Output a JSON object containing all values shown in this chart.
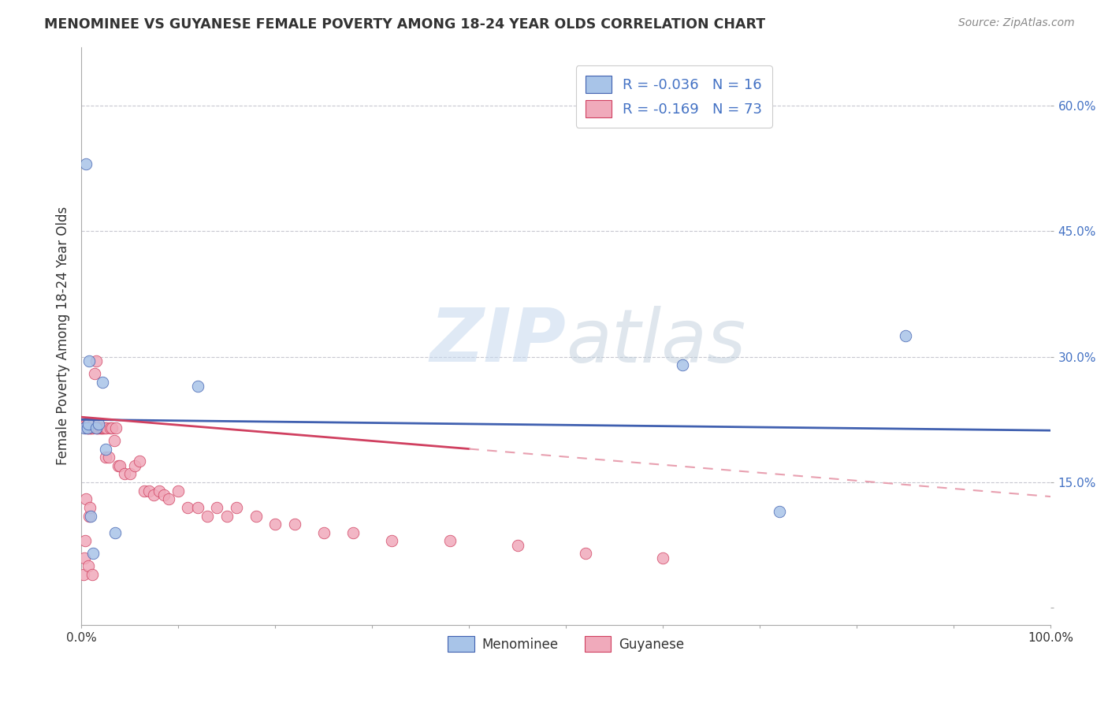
{
  "title": "MENOMINEE VS GUYANESE FEMALE POVERTY AMONG 18-24 YEAR OLDS CORRELATION CHART",
  "source": "Source: ZipAtlas.com",
  "ylabel": "Female Poverty Among 18-24 Year Olds",
  "xlim": [
    0,
    1.0
  ],
  "ylim": [
    -0.02,
    0.67
  ],
  "xticks": [
    0.0,
    0.1,
    0.2,
    0.3,
    0.4,
    0.5,
    0.6,
    0.7,
    0.8,
    0.9,
    1.0
  ],
  "xticklabels": [
    "0.0%",
    "",
    "",
    "",
    "",
    "",
    "",
    "",
    "",
    "",
    "100.0%"
  ],
  "yticks": [
    0.0,
    0.15,
    0.3,
    0.45,
    0.6
  ],
  "yticklabels": [
    "",
    "15.0%",
    "30.0%",
    "45.0%",
    "60.0%"
  ],
  "menominee_color": "#a8c4e8",
  "guyanese_color": "#f0aabb",
  "trend_menominee_color": "#4060b0",
  "trend_guyanese_solid_color": "#d04060",
  "trend_guyanese_dash_color": "#e8a0b0",
  "legend_r_menominee": "R = -0.036",
  "legend_n_menominee": "N = 16",
  "legend_r_guyanese": "R = -0.169",
  "legend_n_guyanese": "N = 73",
  "menominee_x": [
    0.003,
    0.005,
    0.006,
    0.007,
    0.008,
    0.01,
    0.012,
    0.015,
    0.018,
    0.022,
    0.025,
    0.035,
    0.12,
    0.62,
    0.72,
    0.85
  ],
  "menominee_y": [
    0.215,
    0.53,
    0.215,
    0.22,
    0.295,
    0.11,
    0.065,
    0.215,
    0.22,
    0.27,
    0.19,
    0.09,
    0.265,
    0.29,
    0.115,
    0.325
  ],
  "guyanese_x": [
    0.002,
    0.003,
    0.003,
    0.004,
    0.004,
    0.005,
    0.005,
    0.005,
    0.006,
    0.006,
    0.007,
    0.007,
    0.007,
    0.008,
    0.008,
    0.009,
    0.009,
    0.01,
    0.01,
    0.011,
    0.011,
    0.012,
    0.012,
    0.013,
    0.013,
    0.014,
    0.015,
    0.015,
    0.016,
    0.017,
    0.018,
    0.019,
    0.02,
    0.021,
    0.022,
    0.023,
    0.024,
    0.025,
    0.026,
    0.028,
    0.03,
    0.032,
    0.034,
    0.036,
    0.038,
    0.04,
    0.045,
    0.05,
    0.055,
    0.06,
    0.065,
    0.07,
    0.075,
    0.08,
    0.085,
    0.09,
    0.1,
    0.11,
    0.12,
    0.13,
    0.14,
    0.15,
    0.16,
    0.18,
    0.2,
    0.22,
    0.25,
    0.28,
    0.32,
    0.38,
    0.45,
    0.52,
    0.6
  ],
  "guyanese_y": [
    0.04,
    0.22,
    0.06,
    0.22,
    0.08,
    0.22,
    0.215,
    0.13,
    0.215,
    0.22,
    0.215,
    0.215,
    0.05,
    0.11,
    0.22,
    0.215,
    0.12,
    0.215,
    0.215,
    0.215,
    0.04,
    0.215,
    0.22,
    0.22,
    0.22,
    0.28,
    0.215,
    0.295,
    0.215,
    0.215,
    0.215,
    0.215,
    0.215,
    0.215,
    0.215,
    0.215,
    0.215,
    0.18,
    0.215,
    0.18,
    0.215,
    0.215,
    0.2,
    0.215,
    0.17,
    0.17,
    0.16,
    0.16,
    0.17,
    0.175,
    0.14,
    0.14,
    0.135,
    0.14,
    0.135,
    0.13,
    0.14,
    0.12,
    0.12,
    0.11,
    0.12,
    0.11,
    0.12,
    0.11,
    0.1,
    0.1,
    0.09,
    0.09,
    0.08,
    0.08,
    0.075,
    0.065,
    0.06
  ],
  "watermark_zip": "ZIP",
  "watermark_atlas": "atlas",
  "background_color": "#ffffff",
  "grid_color": "#c8c8d0"
}
